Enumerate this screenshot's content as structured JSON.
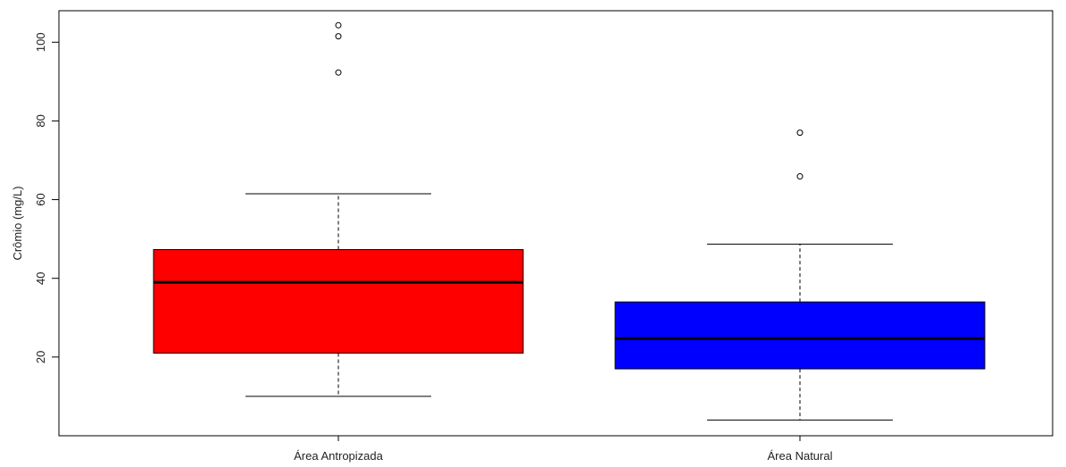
{
  "chart_data": {
    "type": "box",
    "ylabel": "Crômio (mg/L)",
    "ylim": [
      0,
      108
    ],
    "yticks": [
      20,
      40,
      60,
      80,
      100
    ],
    "categories": [
      "Área Antropizada",
      "Área Natural"
    ],
    "boxes": [
      {
        "name": "Área Antropizada",
        "color": "#ff0000",
        "whisker_low": 10,
        "q1": 21,
        "median": 39,
        "q3": 47.3,
        "whisker_high": 61.5,
        "outliers": [
          92.3,
          101.5,
          104.3
        ]
      },
      {
        "name": "Área Natural",
        "color": "#0000ff",
        "whisker_low": 4,
        "q1": 17,
        "median": 24.7,
        "q3": 34,
        "whisker_high": 48.7,
        "outliers": [
          65.9,
          77
        ]
      }
    ]
  }
}
